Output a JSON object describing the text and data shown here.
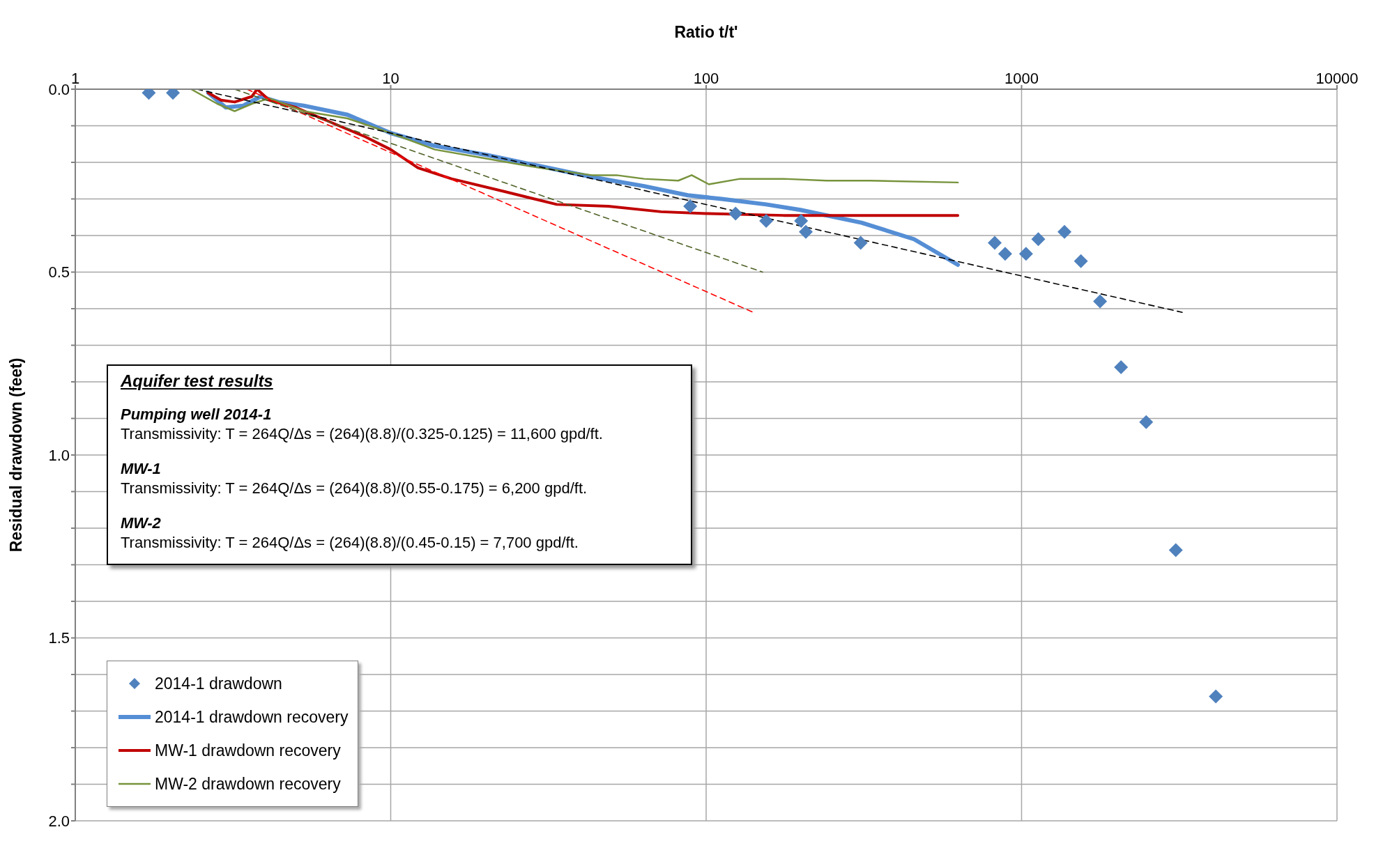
{
  "chart_data": {
    "type": "line",
    "xlabel": "Ratio t/t'",
    "ylabel": "Residual drawdown (feet)",
    "log": "x",
    "xlim": [
      1,
      10000
    ],
    "xticks": [
      1,
      10,
      100,
      1000,
      10000
    ],
    "ylim": [
      2,
      0
    ],
    "yticks": [
      {
        "value": 0,
        "label": "0.0"
      },
      {
        "value": 0.1,
        "label": null
      },
      {
        "value": 0.2,
        "label": null
      },
      {
        "value": 0.3,
        "label": null
      },
      {
        "value": 0.4,
        "label": null
      },
      {
        "value": 0.5,
        "label": "0.5"
      },
      {
        "value": 0.6,
        "label": null
      },
      {
        "value": 0.7,
        "label": null
      },
      {
        "value": 0.8,
        "label": null
      },
      {
        "value": 0.9,
        "label": null
      },
      {
        "value": 1,
        "label": "1.0"
      },
      {
        "value": 1.1,
        "label": null
      },
      {
        "value": 1.2,
        "label": null
      },
      {
        "value": 1.3,
        "label": null
      },
      {
        "value": 1.4,
        "label": null
      },
      {
        "value": 1.5,
        "label": "1.5"
      },
      {
        "value": 1.6,
        "label": null
      },
      {
        "value": 1.7,
        "label": null
      },
      {
        "value": 1.8,
        "label": null
      },
      {
        "value": 1.9,
        "label": null
      },
      {
        "value": 2,
        "label": "2.0"
      }
    ],
    "grid": true,
    "legend": "bottom left",
    "series": [
      {
        "name": "2014-1 drawdown",
        "type": "scatter",
        "marker": "diamond",
        "color": "#4f81bd",
        "x": [
          1.71,
          2.04,
          89,
          124,
          155,
          200,
          207,
          309,
          822,
          887,
          1033,
          1130,
          1368,
          1542,
          1774,
          2067,
          2483,
          3083,
          4130
        ],
        "values": [
          0.01,
          0.01,
          0.32,
          0.34,
          0.36,
          0.36,
          0.39,
          0.42,
          0.42,
          0.45,
          0.45,
          0.41,
          0.39,
          0.47,
          0.58,
          0.76,
          0.91,
          1.26,
          1.66
        ]
      },
      {
        "name": "2014-1 drawdown recovery",
        "line_style": "solid",
        "color": "#558ed5",
        "x": [
          2.64,
          3.0,
          3.41,
          3.87,
          4.4,
          5.3,
          7.3,
          10,
          13.8,
          20.2,
          29.6,
          43.4,
          63.6,
          87.5,
          112,
          155,
          199,
          311,
          456,
          628
        ],
        "values": [
          0.01,
          0.05,
          0.045,
          0.02,
          0.035,
          0.045,
          0.07,
          0.12,
          0.155,
          0.18,
          0.21,
          0.24,
          0.265,
          0.29,
          0.3,
          0.315,
          0.33,
          0.365,
          0.41,
          0.48
        ]
      },
      {
        "name": "MW-1 drawdown recovery",
        "line_style": "solid",
        "color": "#c00000",
        "x": [
          2.64,
          2.9,
          3.2,
          3.63,
          3.77,
          4.12,
          5.0,
          6.44,
          8.3,
          10,
          12.2,
          15.6,
          23,
          33.6,
          49,
          72,
          100,
          176,
          331,
          628
        ],
        "values": [
          0.01,
          0.03,
          0.035,
          0.02,
          0.0,
          0.03,
          0.05,
          0.09,
          0.13,
          0.165,
          0.215,
          0.245,
          0.28,
          0.315,
          0.32,
          0.335,
          0.34,
          0.345,
          0.345,
          0.345
        ]
      },
      {
        "name": "MW-2 drawdown recovery",
        "line_style": "solid",
        "color": "#77933c",
        "x": [
          2.33,
          2.82,
          3.2,
          3.63,
          4.12,
          5.3,
          7.3,
          10,
          13.8,
          20.2,
          29.6,
          43.4,
          52,
          63.6,
          81.6,
          90,
          102,
          128,
          176,
          241,
          331,
          628
        ],
        "values": [
          0.0,
          0.04,
          0.06,
          0.04,
          0.025,
          0.06,
          0.08,
          0.12,
          0.165,
          0.19,
          0.215,
          0.235,
          0.235,
          0.245,
          0.25,
          0.235,
          0.26,
          0.245,
          0.245,
          0.25,
          0.25,
          0.255
        ]
      },
      {
        "line_style": "dashed",
        "color": "#000000",
        "x": [
          2.43,
          3230
        ],
        "values": [
          0.0,
          0.61
        ]
      },
      {
        "line_style": "dashed",
        "color": "#ff0000",
        "x": [
          3.5,
          141
        ],
        "values": [
          0.0,
          0.61
        ]
      },
      {
        "line_style": "dashed",
        "color": "#4f6228",
        "x": [
          3.2,
          151
        ],
        "values": [
          0.0,
          0.5
        ]
      }
    ],
    "annotations": [
      "Aquifer test results",
      "Pumping well 2014-1",
      "Transmissivity: T = 264Q/Δs = (264)(8.8)/(0.325-0.125) = 11,600 gpd/ft.",
      "MW-1",
      "Transmissivity: T = 264Q/Δs = (264)(8.8)/(0.55-0.175) = 6,200 gpd/ft.",
      "MW-2",
      "Transmissivity: T = 264Q/Δs = (264)(8.8)/(0.45-0.15) = 7,700 gpd/ft."
    ]
  }
}
